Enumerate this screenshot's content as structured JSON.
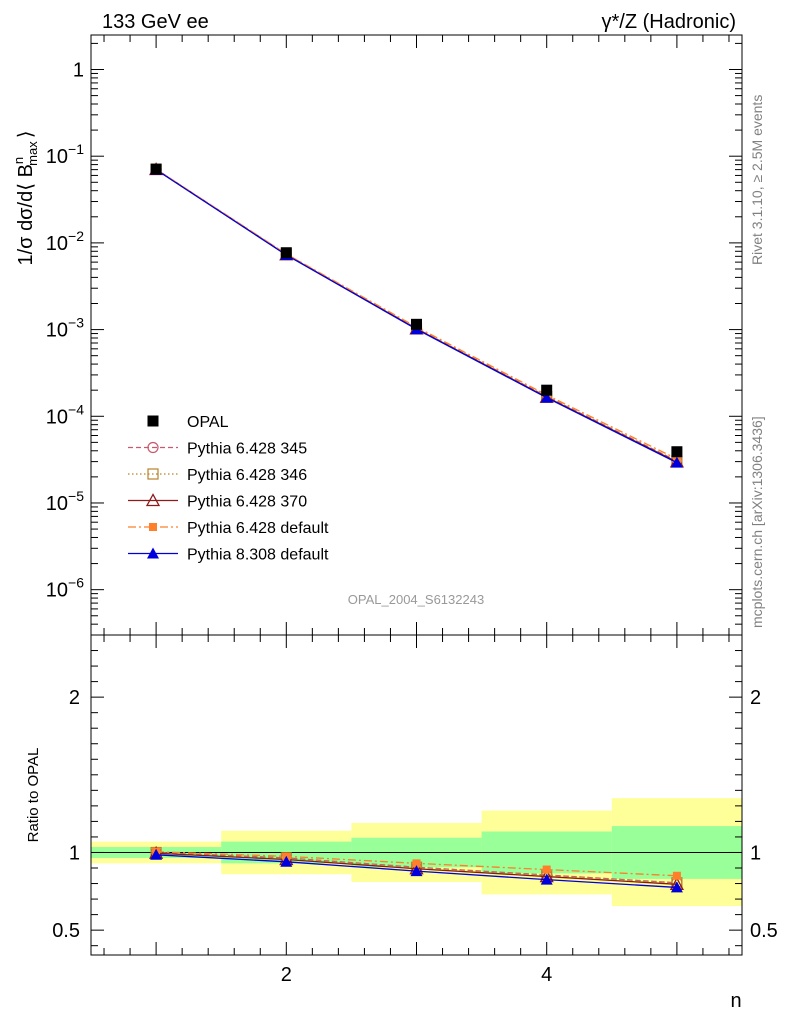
{
  "header": {
    "left": "133 GeV ee",
    "right": "γ*/Z (Hadronic)"
  },
  "side_text": {
    "rivet": "Rivet 3.1.10, ≥ 2.5M events",
    "mcplots": "mcplots.cern.ch [arXiv:1306.3436]"
  },
  "analysis_id": "OPAL_2004_S6132243",
  "colors": {
    "opal": "#000000",
    "p345": "#c85a6e",
    "p346": "#b8822a",
    "p370": "#8b1a1a",
    "p6def": "#ff7f2a",
    "p8def": "#0000dd",
    "band_yellow": "#ffff99",
    "band_green": "#99ff99"
  },
  "chart_data": [
    {
      "type": "line",
      "panel": "main",
      "ylabel": "1/σ dσ/d⟨ B",
      "ylabel_sup": "n",
      "ylabel_sub": "max",
      "ylabel_end": "⟩",
      "yscale": "log",
      "ylim": [
        3e-07,
        2.5
      ],
      "xlim": [
        0.5,
        5.5
      ],
      "y_ticks": [
        {
          "value": 1,
          "base": "1",
          "exp": ""
        },
        {
          "value": 0.1,
          "base": "10",
          "exp": "−1"
        },
        {
          "value": 0.01,
          "base": "10",
          "exp": "−2"
        },
        {
          "value": 0.001,
          "base": "10",
          "exp": "−3"
        },
        {
          "value": 0.0001,
          "base": "10",
          "exp": "−4"
        },
        {
          "value": 1e-05,
          "base": "10",
          "exp": "−5"
        },
        {
          "value": 1e-06,
          "base": "10",
          "exp": "−6"
        }
      ],
      "x": [
        1,
        2,
        3,
        4,
        5
      ],
      "series": [
        {
          "name": "OPAL",
          "key": "opal",
          "marker": "square",
          "line": "none",
          "values": [
            0.071,
            0.0077,
            0.00115,
            0.0002,
            3.9e-05
          ]
        },
        {
          "name": "Pythia 6.428 345",
          "key": "p345",
          "marker": "circle-open",
          "line": "dashed",
          "values": [
            0.0705,
            0.0074,
            0.00103,
            0.000169,
            3.05e-05
          ]
        },
        {
          "name": "Pythia 6.428 346",
          "key": "p346",
          "marker": "square-open",
          "line": "dotted",
          "values": [
            0.0705,
            0.0074,
            0.00103,
            0.000169,
            3.05e-05
          ]
        },
        {
          "name": "Pythia 6.428 370",
          "key": "p370",
          "marker": "triangle-open",
          "line": "solid",
          "values": [
            0.0703,
            0.0073,
            0.00102,
            0.000166,
            2.98e-05
          ]
        },
        {
          "name": "Pythia 6.428 default",
          "key": "p6def",
          "marker": "square-filled-small",
          "line": "dashdot",
          "values": [
            0.0708,
            0.00745,
            0.00107,
            0.000176,
            3.22e-05
          ]
        },
        {
          "name": "Pythia 8.308 default",
          "key": "p8def",
          "marker": "triangle-filled",
          "line": "solid",
          "values": [
            0.0698,
            0.00725,
            0.00101,
            0.000164,
            2.92e-05
          ]
        }
      ]
    },
    {
      "type": "line",
      "panel": "ratio",
      "ylabel": "Ratio to OPAL",
      "xlabel": "n",
      "ylim": [
        0.34,
        2.4
      ],
      "xlim": [
        0.5,
        5.5
      ],
      "y_ticks": [
        {
          "value": 0.5,
          "label": "0.5"
        },
        {
          "value": 1,
          "label": "1"
        },
        {
          "value": 2,
          "label": "2"
        }
      ],
      "x_ticks": [
        {
          "value": 2,
          "label": "2"
        },
        {
          "value": 4,
          "label": "4"
        }
      ],
      "x": [
        1,
        2,
        3,
        4,
        5
      ],
      "bands": {
        "yellow": [
          [
            0.93,
            1.07
          ],
          [
            0.86,
            1.14
          ],
          [
            0.81,
            1.19
          ],
          [
            0.73,
            1.27
          ],
          [
            0.655,
            1.35
          ]
        ],
        "green": [
          [
            0.965,
            1.035
          ],
          [
            0.93,
            1.07
          ],
          [
            0.905,
            1.095
          ],
          [
            0.865,
            1.135
          ],
          [
            0.83,
            1.17
          ]
        ]
      },
      "series": [
        {
          "key": "p345",
          "values": [
            1.0,
            0.965,
            0.905,
            0.855,
            0.805
          ]
        },
        {
          "key": "p346",
          "values": [
            1.0,
            0.965,
            0.905,
            0.855,
            0.805
          ]
        },
        {
          "key": "p370",
          "values": [
            0.995,
            0.955,
            0.895,
            0.845,
            0.795
          ]
        },
        {
          "key": "p6def",
          "values": [
            1.005,
            0.975,
            0.93,
            0.89,
            0.85
          ]
        },
        {
          "key": "p8def",
          "values": [
            0.985,
            0.94,
            0.88,
            0.825,
            0.775
          ]
        }
      ]
    }
  ]
}
